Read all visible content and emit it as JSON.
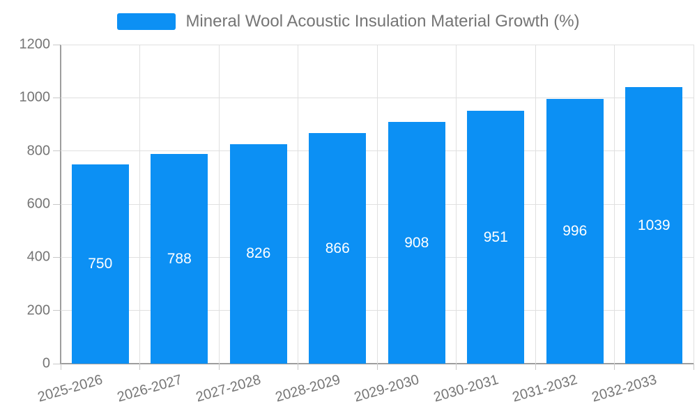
{
  "legend": {
    "series_label": "Mineral Wool Acoustic Insulation Material Growth (%)"
  },
  "chart_data": {
    "type": "bar",
    "title": "Mineral Wool Acoustic Insulation Material Growth (%)",
    "categories": [
      "2025-2026",
      "2026-2027",
      "2027-2028",
      "2028-2029",
      "2029-2030",
      "2030-2031",
      "2031-2032",
      "2032-2033"
    ],
    "values": [
      750,
      788,
      826,
      866,
      908,
      951,
      996,
      1039
    ],
    "xlabel": "",
    "ylabel": "",
    "ylim": [
      0,
      1200
    ],
    "yticks": [
      0,
      200,
      400,
      600,
      800,
      1000,
      1200
    ],
    "grid": true,
    "legend_position": "top",
    "bar_color": "#0c90f4",
    "bar_label_color": "#ffffff",
    "axis_text_color": "#757575",
    "grid_color": "#e0e0e0",
    "axis_line_color": "#9e9e9e"
  }
}
